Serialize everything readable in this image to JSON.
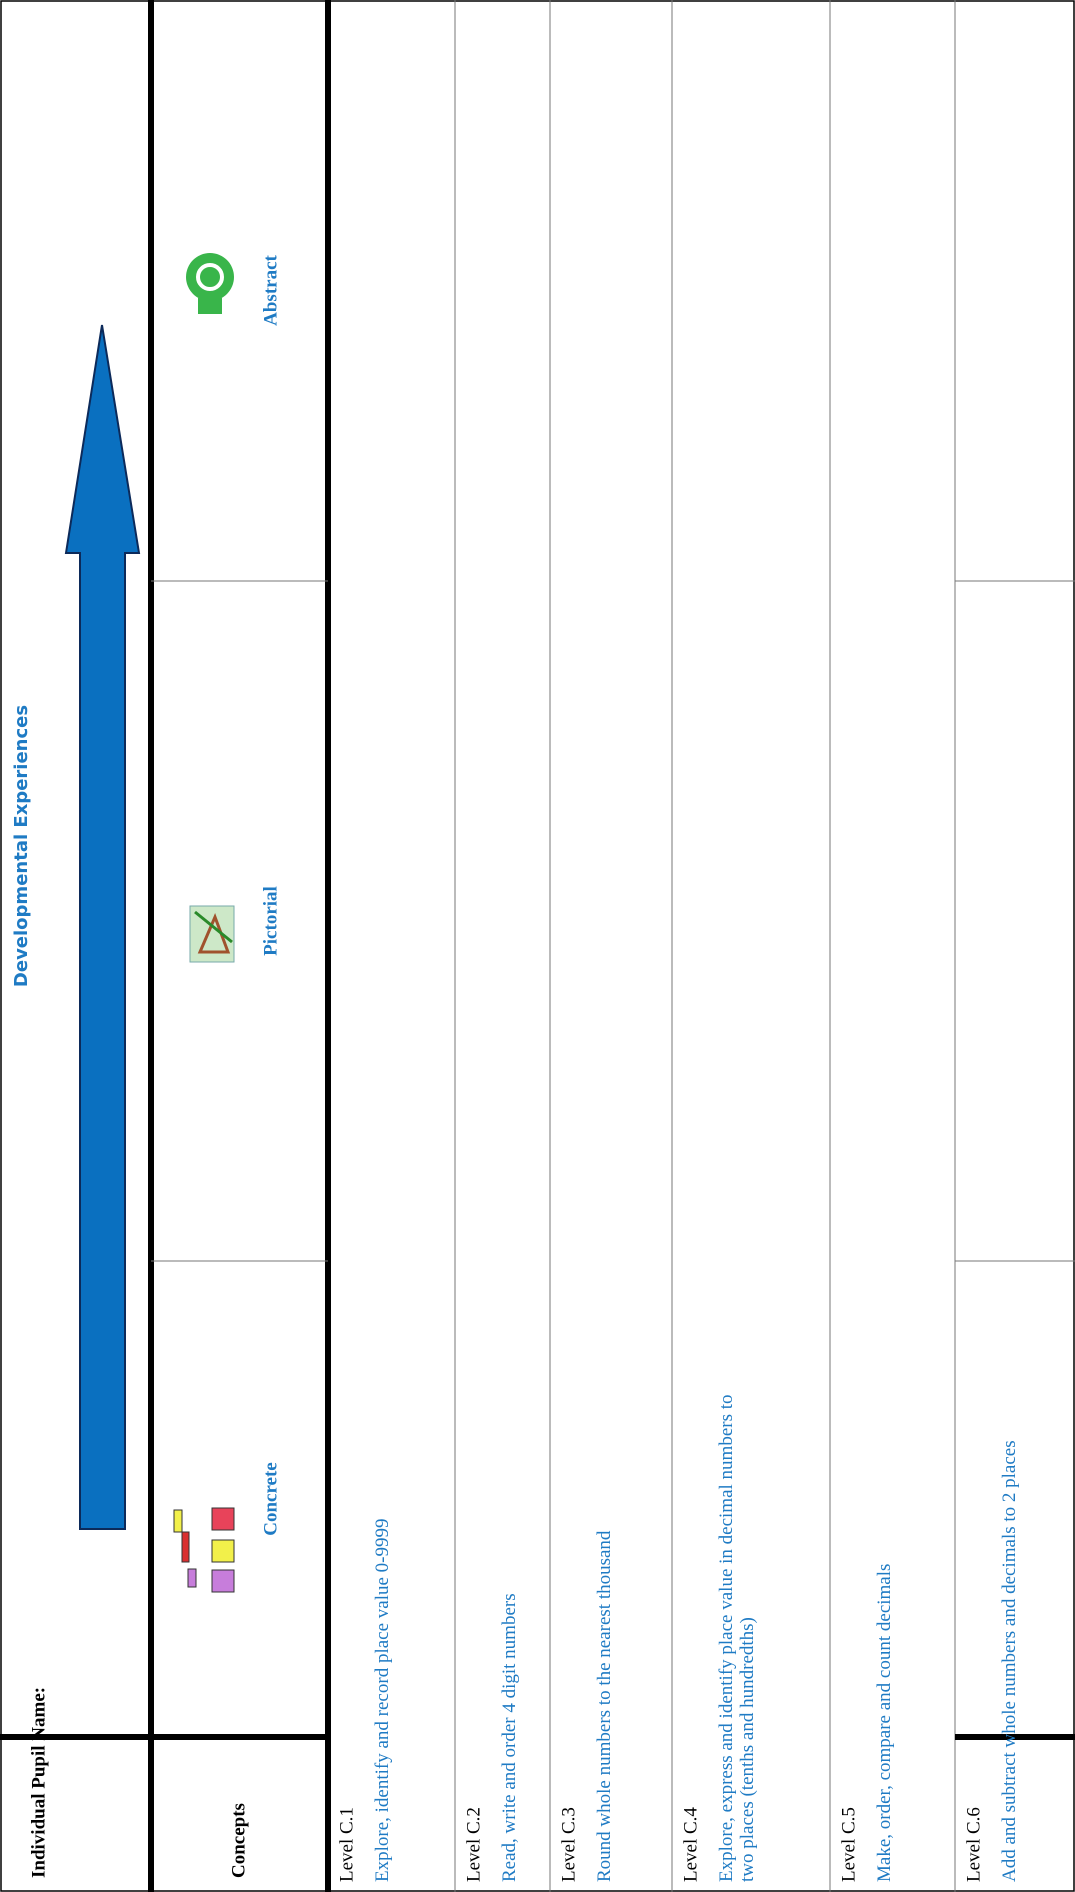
{
  "header": {
    "pupil_name_label": "Individual Pupil Name:",
    "title": "Developmental Experiences"
  },
  "columns": [
    "Concepts",
    "Concrete",
    "Pictorial",
    "Abstract"
  ],
  "rows": [
    {
      "level": "Level C.1",
      "concept": "Explore, identify and record place value 0-9999"
    },
    {
      "level": "Level C.2",
      "concept": "Read, write and order 4 digit numbers"
    },
    {
      "level": "Level C.3",
      "concept": "Round whole numbers to the nearest thousand"
    },
    {
      "level": "Level C.4",
      "concept": "Explore, express and identify place value in decimal numbers to two places (tenths and hundredths)"
    },
    {
      "level": "Level C.5",
      "concept": "Make, order,  compare and count decimals"
    },
    {
      "level": "Level C.6",
      "concept": "Add and subtract whole numbers and decimals to 2 places"
    }
  ]
}
